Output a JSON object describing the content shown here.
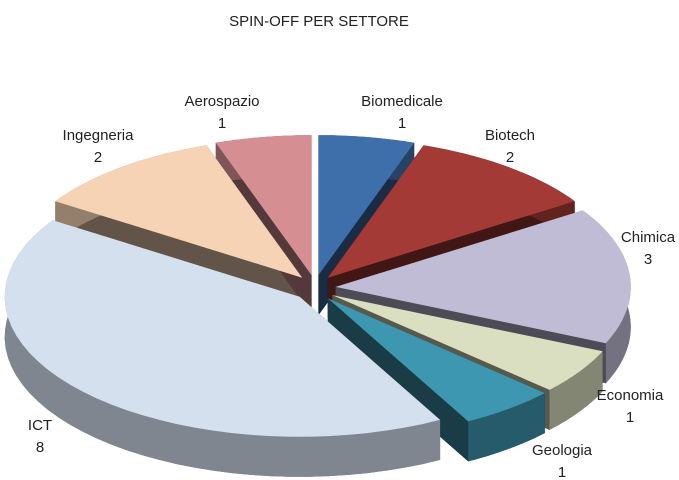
{
  "chart_data": {
    "type": "pie",
    "title": "SPIN-OFF PER SETTORE",
    "categories": [
      "Biomedicale",
      "Biotech",
      "Chimica",
      "Economia",
      "Geologia",
      "ICT",
      "Ingegneria",
      "Aerospazio"
    ],
    "values": [
      1,
      2,
      3,
      1,
      1,
      8,
      2,
      1
    ],
    "colors": [
      "#3f6faa",
      "#a33a36",
      "#c1bcd6",
      "#d9dfc0",
      "#3e97b0",
      "#d5e0ee",
      "#f6d3b4",
      "#d58e92"
    ]
  }
}
